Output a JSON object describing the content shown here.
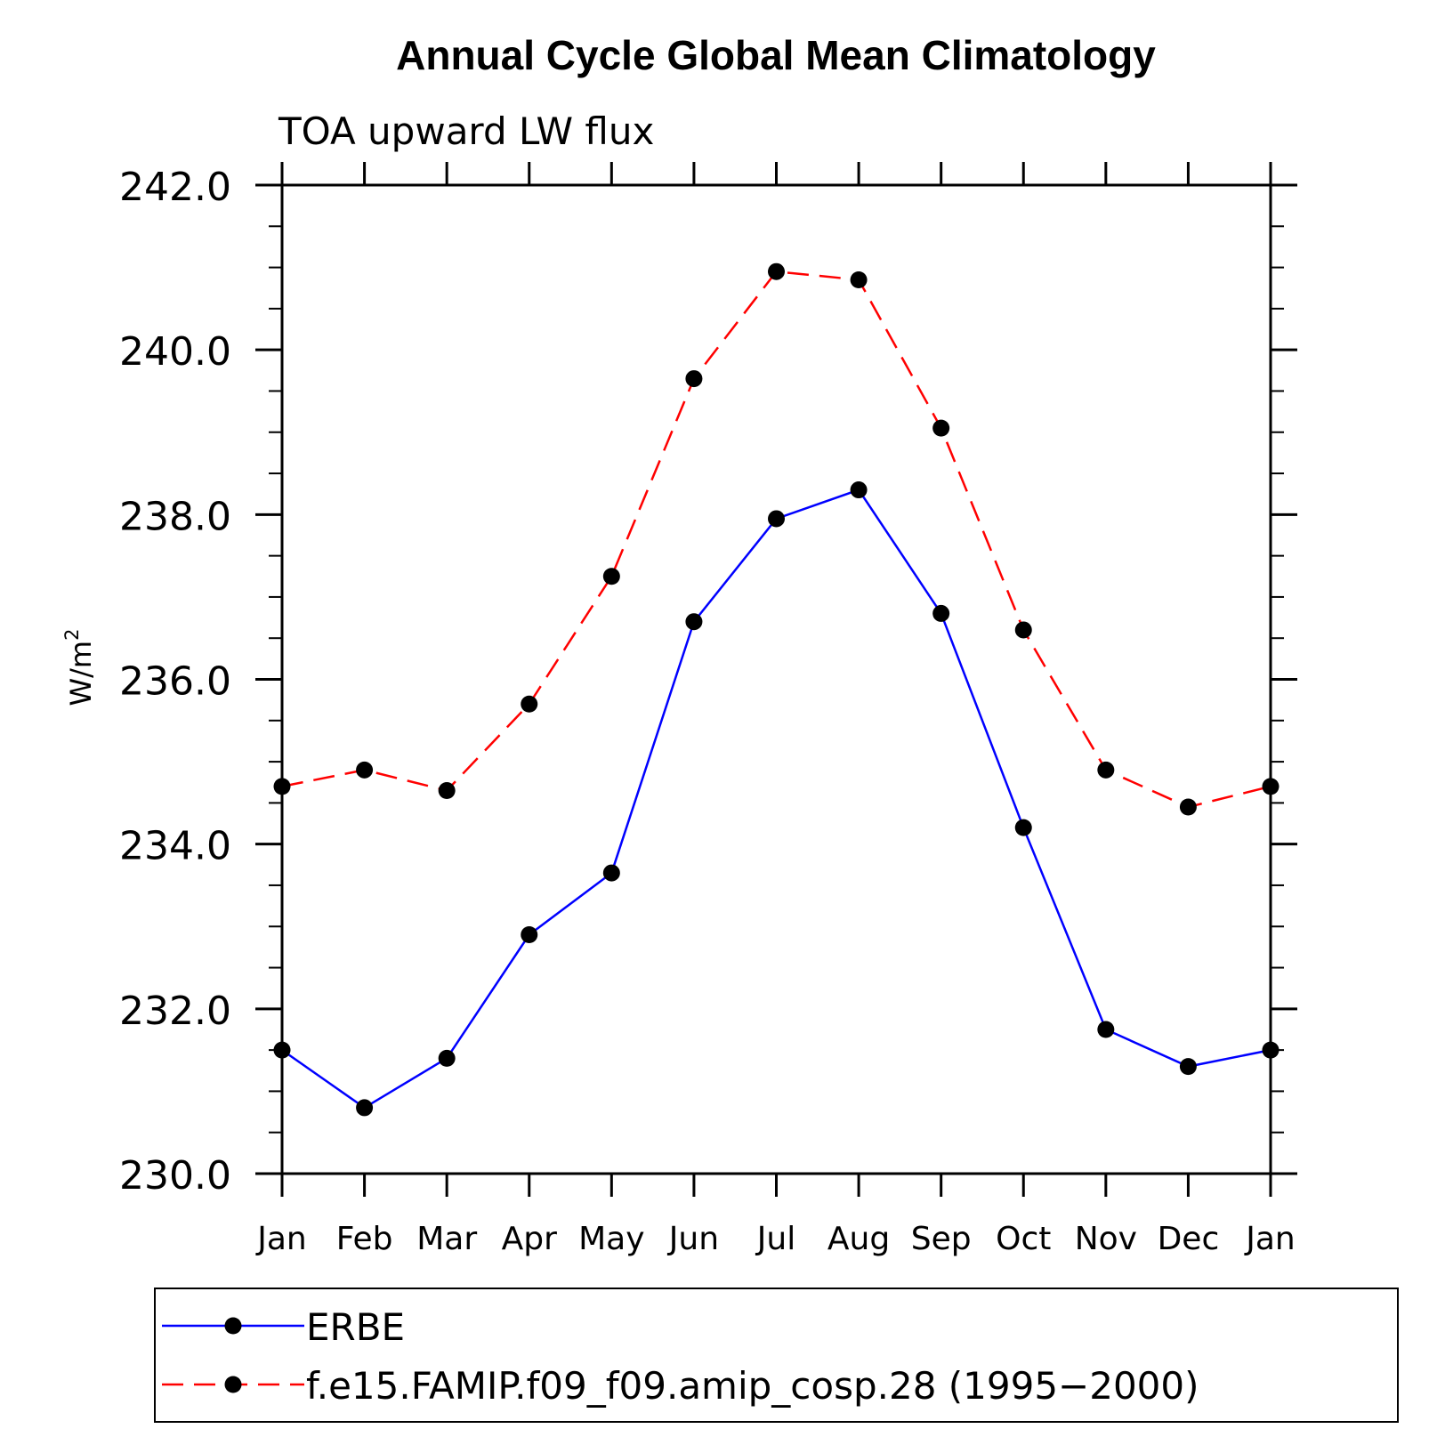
{
  "chart_data": {
    "type": "line",
    "title": "Annual Cycle Global Mean Climatology",
    "subtitle": "TOA upward LW flux",
    "ylabel": "W/m",
    "ylabel_superscript": "2",
    "xlabel": "",
    "categories": [
      "Jan",
      "Feb",
      "Mar",
      "Apr",
      "May",
      "Jun",
      "Jul",
      "Aug",
      "Sep",
      "Oct",
      "Nov",
      "Dec",
      "Jan"
    ],
    "ylim": [
      230.0,
      242.0
    ],
    "yticks": [
      "230.0",
      "232.0",
      "234.0",
      "236.0",
      "238.0",
      "240.0",
      "242.0"
    ],
    "grid": false,
    "legend_position": "bottom",
    "series": [
      {
        "name": "ERBE",
        "color": "#0000ff",
        "line_style": "solid",
        "marker": "filled-circle",
        "values": [
          231.5,
          230.8,
          231.4,
          232.9,
          233.65,
          236.7,
          237.95,
          238.3,
          236.8,
          234.2,
          231.75,
          231.3,
          231.5
        ]
      },
      {
        "name": "f.e15.FAMIP.f09_f09.amip_cosp.28 (1995−2000)",
        "color": "#ff0000",
        "line_style": "dashed",
        "marker": "filled-circle",
        "values": [
          234.7,
          234.9,
          234.65,
          235.7,
          237.25,
          239.65,
          240.95,
          240.85,
          239.05,
          236.6,
          234.9,
          234.45,
          234.7
        ]
      }
    ]
  }
}
